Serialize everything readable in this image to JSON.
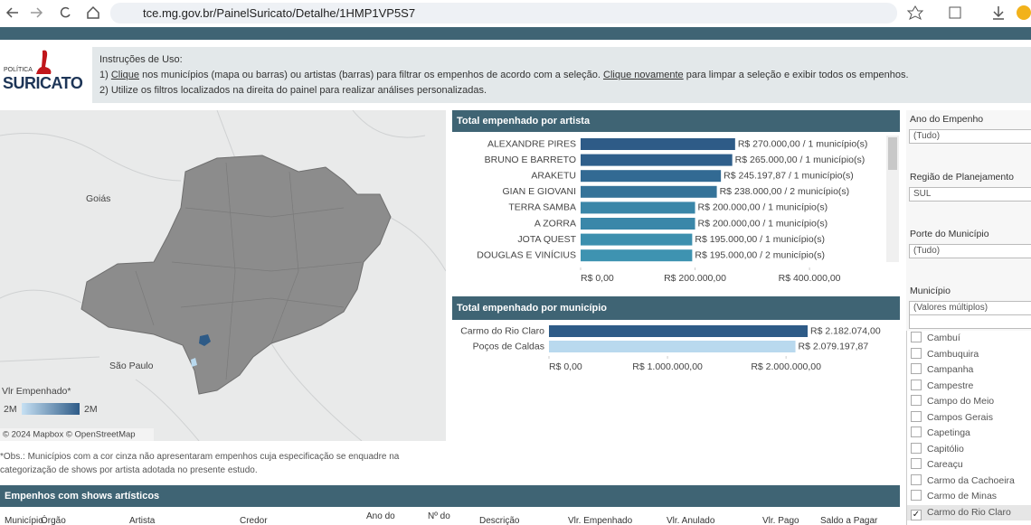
{
  "browser": {
    "url": "tce.mg.gov.br/PainelSuricato/Detalhe/1HMP1VP5S7"
  },
  "logo": {
    "top": "POLÍTICA",
    "name": "SURICATO"
  },
  "instructions": {
    "title": "Instruções de Uso:",
    "line1": [
      "1) ",
      "Clique",
      " nos municípios (mapa ou barras) ou artistas (barras) para filtrar os empenhos de acordo com a seleção. ",
      "Clique novamente",
      " para limpar a seleção e exibir todos os empenhos."
    ],
    "line2": "2) Utilize os filtros localizados na direita do painel para realizar análises personalizadas."
  },
  "map": {
    "labels": [
      "Goiás",
      "São Paulo"
    ],
    "legend_title": "Vlr Empenhado*",
    "legend_min": "2M",
    "legend_max": "2M",
    "credits": "© 2024 Mapbox © OpenStreetMap"
  },
  "note": "*Obs.: Municípios com a cor cinza não apresentaram empenhos cuja especificação se enquadre na categorização de shows por artista adotada no presente estudo.",
  "artist_chart": {
    "type": "bar",
    "title": "Total empenhado por artista",
    "categories": [
      "ALEXANDRE PIRES",
      "BRUNO E BARRETO",
      "ARAKETU",
      "GIAN E GIOVANI",
      "TERRA SAMBA",
      "A ZORRA",
      "JOTA QUEST",
      "DOUGLAS E VINÍCIUS"
    ],
    "values": [
      270000,
      265000,
      245197.87,
      238000,
      200000,
      200000,
      195000,
      195000
    ],
    "value_labels": [
      "R$ 270.000,00 / 1 município(s)",
      "R$ 265.000,00 / 1 município(s)",
      "R$ 245.197,87 / 1 município(s)",
      "R$ 238.000,00 / 2 município(s)",
      "R$ 200.000,00 / 1 município(s)",
      "R$ 200.000,00 / 1 município(s)",
      "R$ 195.000,00 / 1 município(s)",
      "R$ 195.000,00 / 2 município(s)"
    ],
    "colors": [
      "#2e5b87",
      "#2f5f8b",
      "#326a93",
      "#357399",
      "#3a86a8",
      "#3a87a9",
      "#3c8fae",
      "#3e93b1"
    ],
    "xlim": [
      0,
      550000
    ],
    "xticks": [
      {
        "value": 0,
        "label": "R$ 0,00"
      },
      {
        "value": 200000,
        "label": "R$ 200.000,00"
      },
      {
        "value": 400000,
        "label": "R$ 400.000,00"
      }
    ]
  },
  "municipality_chart": {
    "type": "bar",
    "title": "Total empenhado por município",
    "categories": [
      "Carmo do Rio Claro",
      "Poços de Caldas"
    ],
    "values": [
      2182074,
      2079197.87
    ],
    "value_labels": [
      "R$ 2.182.074,00",
      "R$ 2.079.197,87"
    ],
    "colors": [
      "#2e5b87",
      "#b9d9ee"
    ],
    "xlim": [
      0,
      2960000
    ],
    "xticks": [
      {
        "value": 0,
        "label": "R$ 0,00"
      },
      {
        "value": 1000000,
        "label": "R$ 1.000.000,00"
      },
      {
        "value": 2000000,
        "label": "R$ 2.000.000,00"
      }
    ]
  },
  "filters": [
    {
      "label": "Ano do Empenho",
      "value": "(Tudo)"
    },
    {
      "label": "Região de Planejamento",
      "value": "SUL"
    },
    {
      "label": "Porte do Município",
      "value": "(Tudo)"
    },
    {
      "label": "Município",
      "value": "(Valores múltiplos)"
    }
  ],
  "municipality_list": {
    "items": [
      "Cambuí",
      "Cambuquira",
      "Campanha",
      "Campestre",
      "Campo do Meio",
      "Campos Gerais",
      "Capetinga",
      "Capitólio",
      "Careaçu",
      "Carmo da Cachoeira",
      "Carmo de Minas",
      "Carmo do Rio Claro"
    ],
    "checked": [
      false,
      false,
      false,
      false,
      false,
      false,
      false,
      false,
      false,
      false,
      false,
      true
    ]
  },
  "table": {
    "title": "Empenhos com shows artísticos",
    "columns": [
      "Município",
      "Órgão",
      "Artista",
      "Credor",
      "Ano do",
      "Nº do",
      "Descrição",
      "Vlr. Empenhado",
      "Vlr. Anulado",
      "Vlr. Pago",
      "Saldo a Pagar"
    ]
  }
}
